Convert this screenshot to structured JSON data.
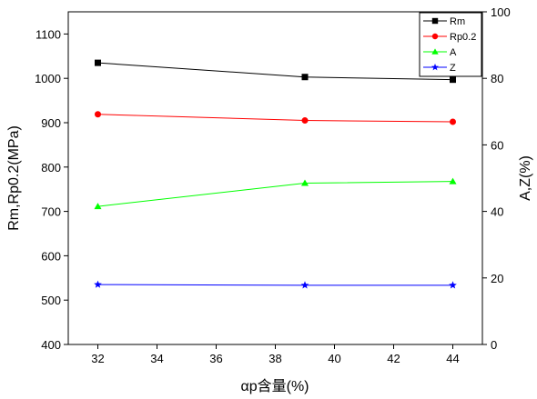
{
  "chart_data": {
    "type": "line",
    "x": [
      32,
      39,
      44
    ],
    "xlabel": "αp含量(%)",
    "xlim": [
      31,
      45
    ],
    "xticks": [
      32,
      34,
      36,
      38,
      40,
      42,
      44
    ],
    "ylabel_left": "Rm,Rp0.2(MPa)",
    "ylim_left": [
      400,
      1150
    ],
    "yticks_left": [
      400,
      500,
      600,
      700,
      800,
      900,
      1000,
      1100
    ],
    "ylabel_right": "A,Z(%)",
    "ylim_right": [
      0,
      100
    ],
    "yticks_right": [
      0,
      20,
      40,
      60,
      80,
      100
    ],
    "grid": false,
    "legend_position": "top-right",
    "series": [
      {
        "name": "Rm",
        "axis": "left",
        "values": [
          1035,
          1003,
          997
        ],
        "color": "#000000",
        "marker": "square"
      },
      {
        "name": "Rp0.2",
        "axis": "left",
        "values": [
          919,
          905,
          902
        ],
        "color": "#ff0000",
        "marker": "circle"
      },
      {
        "name": "A",
        "axis": "right",
        "values": [
          41.5,
          48.5,
          49
        ],
        "color": "#00ff00",
        "marker": "triangle"
      },
      {
        "name": "Z",
        "axis": "right",
        "values": [
          18,
          17.8,
          17.8
        ],
        "color": "#0000ff",
        "marker": "star"
      }
    ]
  }
}
